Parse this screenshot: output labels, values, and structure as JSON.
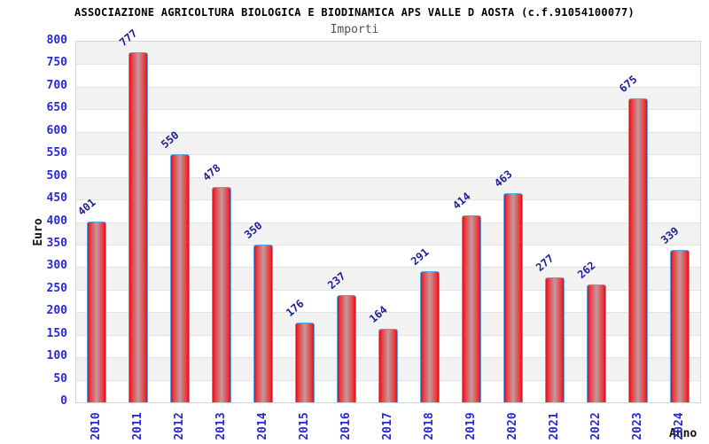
{
  "header": {
    "title": "ASSOCIAZIONE AGRICOLTURA BIOLOGICA E BIODINAMICA APS VALLE D AOSTA (c.f.91054100077)",
    "subtitle": "Importi"
  },
  "chart_data": {
    "type": "bar",
    "title": "ASSOCIAZIONE AGRICOLTURA BIOLOGICA E BIODINAMICA APS VALLE D AOSTA (c.f.91054100077)",
    "subtitle": "Importi",
    "xlabel": "Anno",
    "ylabel": "Euro",
    "categories": [
      "2010",
      "2011",
      "2012",
      "2013",
      "2014",
      "2015",
      "2016",
      "2017",
      "2018",
      "2019",
      "2020",
      "2021",
      "2022",
      "2023",
      "2024"
    ],
    "values": [
      401,
      777,
      550,
      478,
      350,
      176,
      237,
      164,
      291,
      414,
      463,
      277,
      262,
      675,
      339
    ],
    "ylim": [
      0,
      800
    ],
    "ytick_step": 50,
    "grid": "alternating horizontal bands, gray and white, gridline every 50",
    "legend": "none",
    "colors": {
      "axis_tick_labels": "#2a2ad6",
      "value_labels": "#1f1f96",
      "bar_edge_red": "#e30d1c",
      "bar_inner_red": "#ea3a40",
      "bar_center": "#c29a9c",
      "bar_border_blue": "#55a3e8",
      "band_gray": "#f2f2f2",
      "band_white": "#ffffff",
      "title_color": "#000000",
      "subtitle_color": "#4f4f4f"
    }
  }
}
